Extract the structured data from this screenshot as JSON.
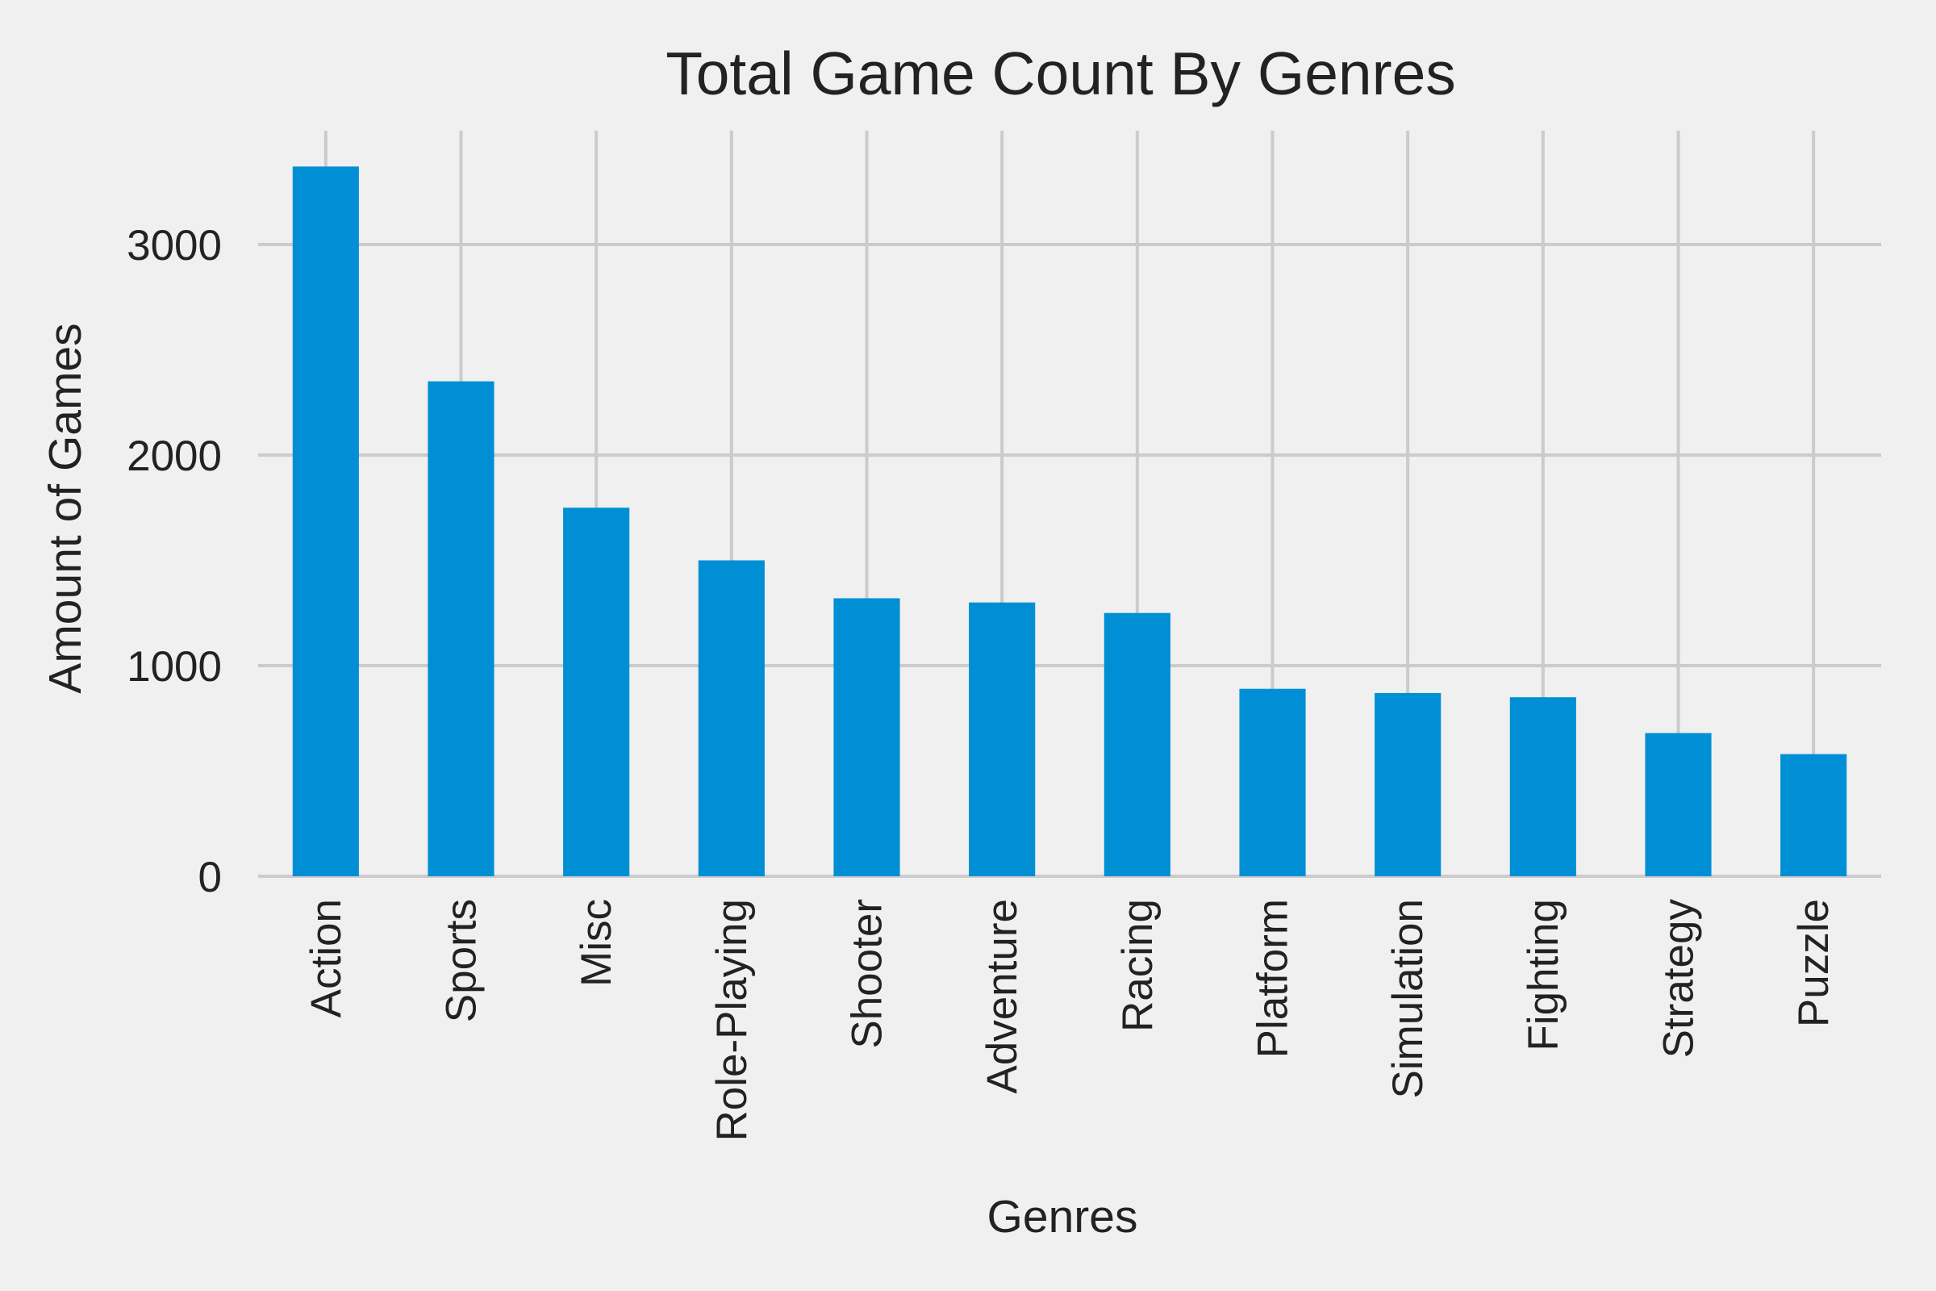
{
  "chart_data": {
    "type": "bar",
    "title": "Total Game Count By Genres",
    "xlabel": "Genres",
    "ylabel": "Amount of Games",
    "categories": [
      "Action",
      "Sports",
      "Misc",
      "Role-Playing",
      "Shooter",
      "Adventure",
      "Racing",
      "Platform",
      "Simulation",
      "Fighting",
      "Strategy",
      "Puzzle"
    ],
    "values": [
      3370,
      2350,
      1750,
      1500,
      1320,
      1300,
      1250,
      890,
      870,
      850,
      680,
      580
    ],
    "y_ticks": [
      0,
      1000,
      2000,
      3000
    ],
    "y_tick_labels": [
      "0",
      "1000",
      "2000",
      "3000"
    ],
    "ylim": [
      0,
      3540
    ],
    "grid": true,
    "legend": "none",
    "colors": {
      "bar": "#008fd5",
      "background": "#f0f0f0",
      "grid": "#cbcbcb",
      "text": "#222222"
    }
  }
}
